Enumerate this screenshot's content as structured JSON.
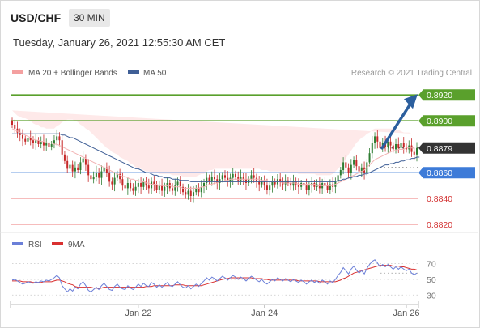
{
  "header": {
    "pair": "USD/CHF",
    "timeframe": "30 MIN"
  },
  "date_line": "Tuesday, January 26, 2021 12:55:30 AM CET",
  "legend": {
    "items": [
      {
        "label": "MA 20 + Bollinger Bands",
        "color": "#f4a0a0"
      },
      {
        "label": "MA 50",
        "color": "#3f5f96"
      }
    ],
    "credit": "Research © 2021 Trading Central"
  },
  "colors": {
    "resistance": "#5aa02c",
    "support_line": "#f3a5a5",
    "pivot": "#3d7bd8",
    "last": "#333333",
    "arrow": "#2c5f9e",
    "bull": "#2e7d32",
    "bear": "#c62828",
    "rsi": "#6b7fd8",
    "rsi_ma": "#d93030"
  },
  "chart_data": [
    {
      "type": "candlestick",
      "ylim": [
        0.8812,
        0.8932
      ],
      "x": {
        "ticks": [
          {
            "label": "Jan 22",
            "index": 48
          },
          {
            "label": "Jan 24",
            "index": 96
          },
          {
            "label": "Jan 26",
            "index": 150
          }
        ]
      },
      "levels": [
        {
          "label": "0.8920",
          "value": 0.892,
          "kind": "resistance"
        },
        {
          "label": "0.8900",
          "value": 0.89,
          "kind": "resistance"
        },
        {
          "label": "0.8879",
          "value": 0.8879,
          "kind": "last"
        },
        {
          "label": "0.8860",
          "value": 0.886,
          "kind": "pivot"
        },
        {
          "label": "0.8840",
          "value": 0.884,
          "kind": "support"
        },
        {
          "label": "0.8820",
          "value": 0.882,
          "kind": "support"
        }
      ],
      "closes": [
        0.8897,
        0.8894,
        0.8891,
        0.8889,
        0.8886,
        0.8884,
        0.8887,
        0.8885,
        0.8883,
        0.8885,
        0.8882,
        0.8884,
        0.8881,
        0.8883,
        0.888,
        0.8882,
        0.8885,
        0.8888,
        0.8885,
        0.8874,
        0.8869,
        0.8863,
        0.8866,
        0.8861,
        0.8864,
        0.8862,
        0.8868,
        0.8871,
        0.8866,
        0.8858,
        0.8855,
        0.8857,
        0.886,
        0.8856,
        0.8861,
        0.8864,
        0.886,
        0.8853,
        0.8851,
        0.8856,
        0.8859,
        0.8855,
        0.885,
        0.8848,
        0.8852,
        0.8848,
        0.8846,
        0.8849,
        0.8852,
        0.8849,
        0.8853,
        0.885,
        0.8848,
        0.8853,
        0.8851,
        0.8847,
        0.885,
        0.8846,
        0.8849,
        0.8852,
        0.8848,
        0.8846,
        0.885,
        0.8853,
        0.8849,
        0.8845,
        0.8843,
        0.8846,
        0.8842,
        0.8845,
        0.8848,
        0.8845,
        0.8849,
        0.8852,
        0.8856,
        0.8853,
        0.8857,
        0.8855,
        0.8852,
        0.8855,
        0.8858,
        0.8856,
        0.8853,
        0.8856,
        0.8859,
        0.8857,
        0.8854,
        0.8857,
        0.8855,
        0.8852,
        0.8855,
        0.8858,
        0.8856,
        0.8853,
        0.8851,
        0.8854,
        0.885,
        0.8847,
        0.885,
        0.8853,
        0.8851,
        0.8855,
        0.8853,
        0.8851,
        0.8854,
        0.8852,
        0.885,
        0.8853,
        0.8851,
        0.8849,
        0.8852,
        0.885,
        0.8847,
        0.885,
        0.8852,
        0.8849,
        0.8851,
        0.8848,
        0.8852,
        0.885,
        0.8847,
        0.8851,
        0.8849,
        0.8853,
        0.8858,
        0.8862,
        0.8868,
        0.8864,
        0.886,
        0.8866,
        0.887,
        0.8865,
        0.8861,
        0.8864,
        0.886,
        0.8868,
        0.8875,
        0.8883,
        0.8888,
        0.8884,
        0.8879,
        0.8883,
        0.888,
        0.8884,
        0.8881,
        0.8878,
        0.8882,
        0.8879,
        0.8883,
        0.888,
        0.8878,
        0.8881,
        0.8876,
        0.8874,
        0.8879
      ],
      "ma20": [
        0.8894,
        0.8893,
        0.8892,
        0.8891,
        0.889,
        0.8889,
        0.8888,
        0.8887,
        0.8886,
        0.8885,
        0.8885,
        0.8884,
        0.8884,
        0.8883,
        0.8883,
        0.8883,
        0.8882,
        0.8882,
        0.8881,
        0.888,
        0.8879,
        0.8878,
        0.8877,
        0.8876,
        0.8875,
        0.8874,
        0.8873,
        0.8872,
        0.8871,
        0.887,
        0.8869,
        0.8868,
        0.8867,
        0.8866,
        0.8865,
        0.8864,
        0.8863,
        0.8862,
        0.8861,
        0.886,
        0.8859,
        0.8858,
        0.8857,
        0.8857,
        0.8856,
        0.8855,
        0.8855,
        0.8854,
        0.8854,
        0.8853,
        0.8853,
        0.8852,
        0.8852,
        0.8851,
        0.8851,
        0.8851,
        0.885,
        0.885,
        0.885,
        0.885,
        0.885,
        0.8849,
        0.8849,
        0.8849,
        0.8849,
        0.8848,
        0.8848,
        0.8848,
        0.8848,
        0.8848,
        0.8848,
        0.8848,
        0.8849,
        0.8849,
        0.885,
        0.8851,
        0.8851,
        0.8852,
        0.8852,
        0.8853,
        0.8853,
        0.8854,
        0.8854,
        0.8855,
        0.8855,
        0.8855,
        0.8855,
        0.8855,
        0.8855,
        0.8855,
        0.8855,
        0.8855,
        0.8855,
        0.8855,
        0.8855,
        0.8854,
        0.8854,
        0.8854,
        0.8853,
        0.8853,
        0.8853,
        0.8853,
        0.8853,
        0.8852,
        0.8852,
        0.8852,
        0.8852,
        0.8852,
        0.8852,
        0.8851,
        0.8851,
        0.8851,
        0.8851,
        0.8851,
        0.8851,
        0.8851,
        0.885,
        0.885,
        0.885,
        0.885,
        0.885,
        0.885,
        0.885,
        0.8851,
        0.8852,
        0.8853,
        0.8854,
        0.8855,
        0.8856,
        0.8857,
        0.8858,
        0.8859,
        0.886,
        0.8861,
        0.8862,
        0.8864,
        0.8866,
        0.8868,
        0.887,
        0.8871,
        0.8872,
        0.8873,
        0.8874,
        0.8875,
        0.8876,
        0.8877,
        0.8877,
        0.8878,
        0.8878,
        0.8878,
        0.8879,
        0.8879,
        0.8879,
        0.8879
      ],
      "bb_width": [
        0.0014,
        0.0013,
        0.0012,
        0.0012,
        0.0012,
        0.0013,
        0.0013,
        0.0013,
        0.0012,
        0.0012,
        0.0012,
        0.0011,
        0.0011,
        0.0011,
        0.0011,
        0.0011,
        0.0012,
        0.0014,
        0.0016,
        0.0019,
        0.0021,
        0.0023,
        0.0024,
        0.0025,
        0.0025,
        0.0025,
        0.0024,
        0.0024,
        0.0023,
        0.0023,
        0.0022,
        0.0021,
        0.002,
        0.0019,
        0.0018,
        0.0017,
        0.0016,
        0.0016,
        0.0015,
        0.0015,
        0.0015,
        0.0014,
        0.0014,
        0.0013,
        0.0013,
        0.0012,
        0.0011,
        0.001,
        0.001,
        0.001,
        0.0009,
        0.0009,
        0.0009,
        0.0009,
        0.0009,
        0.0009,
        0.0009,
        0.0009,
        0.0009,
        0.0009,
        0.0009,
        0.0009,
        0.0009,
        0.0009,
        0.0009,
        0.0009,
        0.0009,
        0.0009,
        0.0009,
        0.0009,
        0.0009,
        0.001,
        0.001,
        0.001,
        0.0011,
        0.0011,
        0.0011,
        0.0011,
        0.0011,
        0.001,
        0.001,
        0.0009,
        0.0009,
        0.0008,
        0.0008,
        0.0008,
        0.0008,
        0.0008,
        0.0008,
        0.0008,
        0.0008,
        0.0008,
        0.0008,
        0.0008,
        0.0008,
        0.0008,
        0.0008,
        0.0008,
        0.0008,
        0.0008,
        0.0008,
        0.0008,
        0.0008,
        0.0008,
        0.0008,
        0.0008,
        0.0008,
        0.0008,
        0.0008,
        0.0008,
        0.0008,
        0.0008,
        0.0008,
        0.0008,
        0.0008,
        0.0008,
        0.0008,
        0.0008,
        0.0008,
        0.0008,
        0.0008,
        0.0008,
        0.0009,
        0.001,
        0.0011,
        0.0012,
        0.0014,
        0.0016,
        0.0018,
        0.002,
        0.0022,
        0.0024,
        0.0025,
        0.0026,
        0.0026,
        0.0026,
        0.0025,
        0.0025,
        0.0024,
        0.0023,
        0.0022,
        0.0021,
        0.002,
        0.0019,
        0.0018,
        0.0017,
        0.0016,
        0.0015,
        0.0014,
        0.0013,
        0.0012,
        0.0012,
        0.0011,
        0.0011
      ],
      "ma50": [
        0.889,
        0.889,
        0.889,
        0.889,
        0.889,
        0.889,
        0.889,
        0.889,
        0.889,
        0.889,
        0.889,
        0.889,
        0.889,
        0.889,
        0.889,
        0.889,
        0.889,
        0.889,
        0.889,
        0.8889,
        0.8889,
        0.8888,
        0.8887,
        0.8887,
        0.8886,
        0.8885,
        0.8884,
        0.8883,
        0.8882,
        0.8881,
        0.888,
        0.8879,
        0.8878,
        0.8877,
        0.8876,
        0.8875,
        0.8874,
        0.8873,
        0.8872,
        0.8871,
        0.887,
        0.8869,
        0.8868,
        0.8867,
        0.8866,
        0.8865,
        0.8864,
        0.8863,
        0.8863,
        0.8862,
        0.8861,
        0.886,
        0.886,
        0.8859,
        0.8858,
        0.8858,
        0.8857,
        0.8857,
        0.8856,
        0.8856,
        0.8856,
        0.8855,
        0.8855,
        0.8855,
        0.8854,
        0.8854,
        0.8854,
        0.8854,
        0.8853,
        0.8853,
        0.8853,
        0.8853,
        0.8853,
        0.8853,
        0.8853,
        0.8853,
        0.8853,
        0.8853,
        0.8853,
        0.8853,
        0.8853,
        0.8853,
        0.8853,
        0.8853,
        0.8853,
        0.8853,
        0.8853,
        0.8853,
        0.8853,
        0.8853,
        0.8853,
        0.8853,
        0.8853,
        0.8853,
        0.8853,
        0.8853,
        0.8853,
        0.8853,
        0.8853,
        0.8853,
        0.8853,
        0.8853,
        0.8853,
        0.8853,
        0.8853,
        0.8853,
        0.8853,
        0.8853,
        0.8853,
        0.8853,
        0.8853,
        0.8853,
        0.8853,
        0.8853,
        0.8853,
        0.8853,
        0.8853,
        0.8853,
        0.8853,
        0.8853,
        0.8853,
        0.8853,
        0.8853,
        0.8853,
        0.8854,
        0.8854,
        0.8855,
        0.8855,
        0.8856,
        0.8856,
        0.8857,
        0.8857,
        0.8858,
        0.8858,
        0.8859,
        0.8859,
        0.886,
        0.8861,
        0.8862,
        0.8863,
        0.8864,
        0.8865,
        0.8866,
        0.8866,
        0.8867,
        0.8867,
        0.8868,
        0.8868,
        0.8869,
        0.8869,
        0.887,
        0.887,
        0.8871,
        0.8871,
        0.8872,
        0.8872
      ],
      "forecast": {
        "from": 0.8879,
        "to": 0.892
      }
    },
    {
      "type": "line",
      "y_ticks": [
        70,
        50,
        30
      ],
      "ylim": [
        22,
        80
      ],
      "series": [
        {
          "name": "RSI",
          "values": [
            49,
            50,
            48,
            46,
            44,
            45,
            47,
            46,
            45,
            47,
            46,
            48,
            47,
            49,
            48,
            50,
            52,
            55,
            52,
            42,
            38,
            34,
            38,
            35,
            40,
            38,
            44,
            47,
            42,
            36,
            34,
            37,
            40,
            37,
            42,
            45,
            41,
            37,
            36,
            41,
            44,
            40,
            38,
            37,
            42,
            39,
            37,
            40,
            44,
            41,
            45,
            42,
            41,
            46,
            44,
            40,
            43,
            40,
            43,
            46,
            42,
            41,
            44,
            47,
            43,
            40,
            39,
            42,
            38,
            41,
            44,
            41,
            45,
            48,
            52,
            49,
            53,
            51,
            48,
            51,
            54,
            52,
            49,
            52,
            55,
            53,
            50,
            53,
            51,
            48,
            51,
            54,
            52,
            49,
            47,
            50,
            46,
            44,
            47,
            50,
            48,
            52,
            50,
            48,
            51,
            49,
            47,
            50,
            48,
            46,
            49,
            47,
            44,
            47,
            49,
            46,
            48,
            45,
            49,
            47,
            44,
            48,
            46,
            50,
            55,
            59,
            65,
            61,
            57,
            63,
            67,
            62,
            58,
            61,
            57,
            64,
            69,
            73,
            75,
            71,
            66,
            69,
            66,
            69,
            66,
            63,
            66,
            63,
            66,
            63,
            61,
            63,
            58,
            56,
            58
          ]
        },
        {
          "name": "9MA",
          "values": [
            48,
            48,
            48,
            48,
            47,
            47,
            47,
            47,
            46,
            46,
            46,
            46,
            47,
            47,
            47,
            47,
            48,
            49,
            49,
            48,
            47,
            45,
            44,
            43,
            41,
            40,
            40,
            40,
            40,
            40,
            40,
            39,
            39,
            38,
            39,
            40,
            40,
            40,
            40,
            40,
            40,
            40,
            40,
            40,
            40,
            40,
            40,
            40,
            40,
            40,
            40,
            41,
            41,
            41,
            42,
            42,
            42,
            42,
            42,
            42,
            42,
            42,
            43,
            43,
            43,
            43,
            42,
            42,
            42,
            42,
            42,
            42,
            42,
            43,
            44,
            45,
            46,
            47,
            48,
            49,
            50,
            51,
            51,
            52,
            52,
            52,
            52,
            52,
            52,
            52,
            52,
            52,
            51,
            51,
            51,
            51,
            50,
            50,
            49,
            49,
            49,
            49,
            49,
            49,
            49,
            49,
            49,
            49,
            49,
            48,
            48,
            48,
            48,
            48,
            48,
            48,
            48,
            47,
            47,
            47,
            47,
            47,
            47,
            47,
            48,
            49,
            51,
            52,
            54,
            56,
            58,
            59,
            60,
            61,
            62,
            63,
            64,
            65,
            66,
            67,
            68,
            68,
            68,
            68,
            68,
            67,
            67,
            67,
            66,
            66,
            65,
            64,
            63,
            63,
            62
          ]
        }
      ],
      "legend": [
        "RSI",
        "9MA"
      ],
      "x_labels": [
        "Jan 22",
        "Jan 24",
        "Jan 26"
      ]
    }
  ]
}
